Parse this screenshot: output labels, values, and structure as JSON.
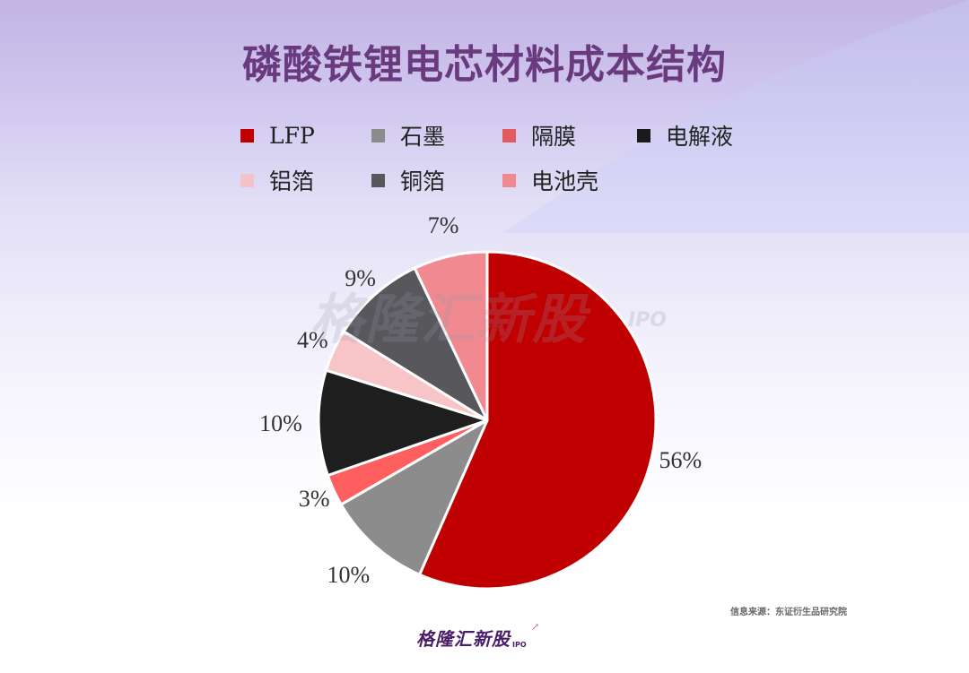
{
  "title": "磷酸铁锂电芯材料成本结构",
  "legend": {
    "rows": [
      [
        {
          "label": "LFP",
          "color": "#c00000"
        },
        {
          "label": "石墨",
          "color": "#8c8c8c"
        },
        {
          "label": "隔膜",
          "color": "#e35a60"
        },
        {
          "label": "电解液",
          "color": "#1a1a1a"
        }
      ],
      [
        {
          "label": "铝箔",
          "color": "#f4c3c8"
        },
        {
          "label": "铜箔",
          "color": "#58585c"
        },
        {
          "label": "电池壳",
          "color": "#f08a90"
        }
      ]
    ]
  },
  "watermark": {
    "text": "格隆汇新股",
    "sub": "IPO"
  },
  "source": "信息来源：东证衍生品研究院",
  "brand": {
    "name": "格隆汇新股",
    "sub": "IPO"
  },
  "chart_data": {
    "type": "pie",
    "title": "磷酸铁锂电芯材料成本结构",
    "legend_position": "top",
    "start_angle": "top (12 o'clock), clockwise",
    "categories": [
      "LFP",
      "石墨",
      "隔膜",
      "电解液",
      "铝箔",
      "铜箔",
      "电池壳"
    ],
    "values": [
      56,
      10,
      3,
      10,
      4,
      9,
      7
    ],
    "labels": [
      "56%",
      "10%",
      "3%",
      "10%",
      "4%",
      "9%",
      "7%"
    ],
    "colors": [
      "#c00000",
      "#8c8c8c",
      "#ff5f5f",
      "#1e1e1e",
      "#f7c4c8",
      "#58585c",
      "#f08a90"
    ],
    "unit": "%"
  }
}
